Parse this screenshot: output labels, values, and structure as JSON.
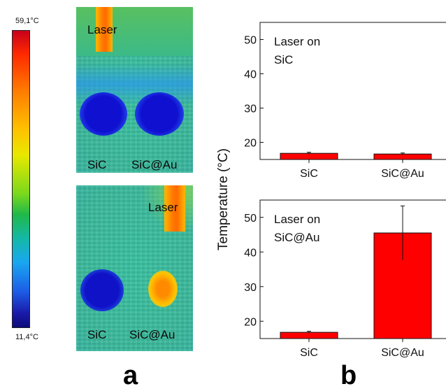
{
  "colorbar": {
    "max_label": "59,1°C",
    "min_label": "11,4°C"
  },
  "panel_a": {
    "letter": "a",
    "top_image": {
      "laser_label": "Laser",
      "sample_labels": [
        "SiC",
        "SiC@Au"
      ]
    },
    "bottom_image": {
      "laser_label": "Laser",
      "sample_labels": [
        "SiC",
        "SiC@Au"
      ]
    }
  },
  "panel_b": {
    "letter": "b",
    "ylabel": "Temperature (°C)"
  },
  "chart_data": [
    {
      "type": "bar",
      "annotation": "Laser on\nSiC",
      "categories": [
        "SiC",
        "SiC@Au"
      ],
      "values": [
        16.8,
        16.6
      ],
      "errors": [
        0.3,
        0.3
      ],
      "ylim": [
        15,
        55
      ],
      "yticks": [
        20,
        30,
        40,
        50
      ],
      "color": "#ff0000"
    },
    {
      "type": "bar",
      "annotation": "Laser on\nSiC@Au",
      "categories": [
        "SiC",
        "SiC@Au"
      ],
      "values": [
        16.8,
        45.5
      ],
      "errors": [
        0.3,
        7.8
      ],
      "ylim": [
        15,
        55
      ],
      "yticks": [
        20,
        30,
        40,
        50
      ],
      "color": "#ff0000"
    }
  ]
}
